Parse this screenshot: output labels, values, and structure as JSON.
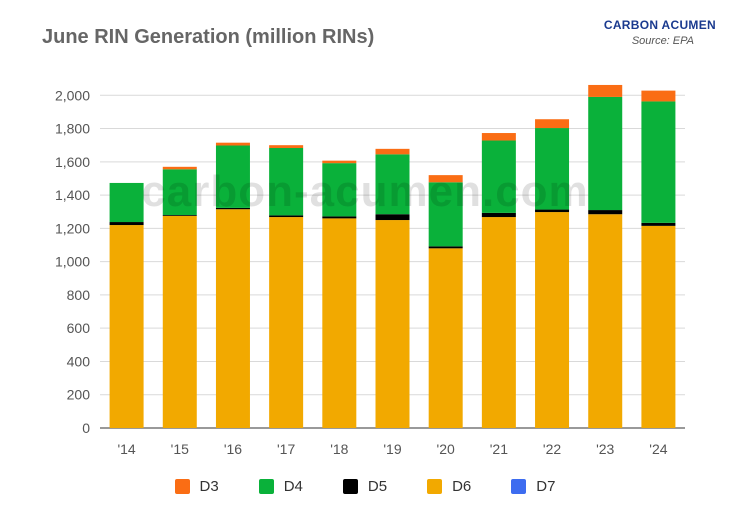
{
  "header": {
    "title": "June RIN Generation (million RINs)",
    "brand": "CARBON ACUMEN",
    "source": "Source: EPA"
  },
  "watermark": "carbon-acumen.com",
  "colors": {
    "D3": "#fa6d14",
    "D4": "#0ab13a",
    "D5": "#000000",
    "D6": "#f2a900",
    "D7": "#3d6cf0",
    "grid": "#d9d9d9",
    "axis_text": "#555555"
  },
  "chart_data": {
    "type": "bar",
    "stacked": true,
    "title": "June RIN Generation (million RINs)",
    "categories": [
      "'14",
      "'15",
      "'16",
      "'17",
      "'18",
      "'19",
      "'20",
      "'21",
      "'22",
      "'23",
      "'24"
    ],
    "series": [
      {
        "name": "D6",
        "color": "#f2a900",
        "values": [
          1220,
          1275,
          1315,
          1268,
          1260,
          1250,
          1080,
          1268,
          1298,
          1285,
          1215
        ]
      },
      {
        "name": "D5",
        "color": "#000000",
        "values": [
          18,
          5,
          8,
          10,
          12,
          35,
          12,
          25,
          15,
          25,
          18
        ]
      },
      {
        "name": "D4",
        "color": "#0ab13a",
        "values": [
          235,
          275,
          375,
          405,
          320,
          360,
          385,
          435,
          490,
          680,
          730
        ]
      },
      {
        "name": "D3",
        "color": "#fa6d14",
        "values": [
          0,
          15,
          17,
          17,
          15,
          33,
          43,
          45,
          53,
          72,
          65
        ]
      },
      {
        "name": "D7",
        "color": "#3d6cf0",
        "values": [
          0,
          0,
          0,
          0,
          0,
          0,
          0,
          0,
          0,
          0,
          0
        ]
      }
    ],
    "legend_order": [
      "D3",
      "D4",
      "D5",
      "D6",
      "D7"
    ],
    "ylim": [
      0,
      2200
    ],
    "yticks": [
      0,
      200,
      400,
      600,
      800,
      1000,
      1200,
      1400,
      1600,
      1800,
      2000
    ],
    "ytick_labels": [
      "0",
      "200",
      "400",
      "600",
      "800",
      "1,000",
      "1,200",
      "1,400",
      "1,600",
      "1,800",
      "2,000"
    ],
    "grid": true,
    "legend_position": "bottom"
  }
}
